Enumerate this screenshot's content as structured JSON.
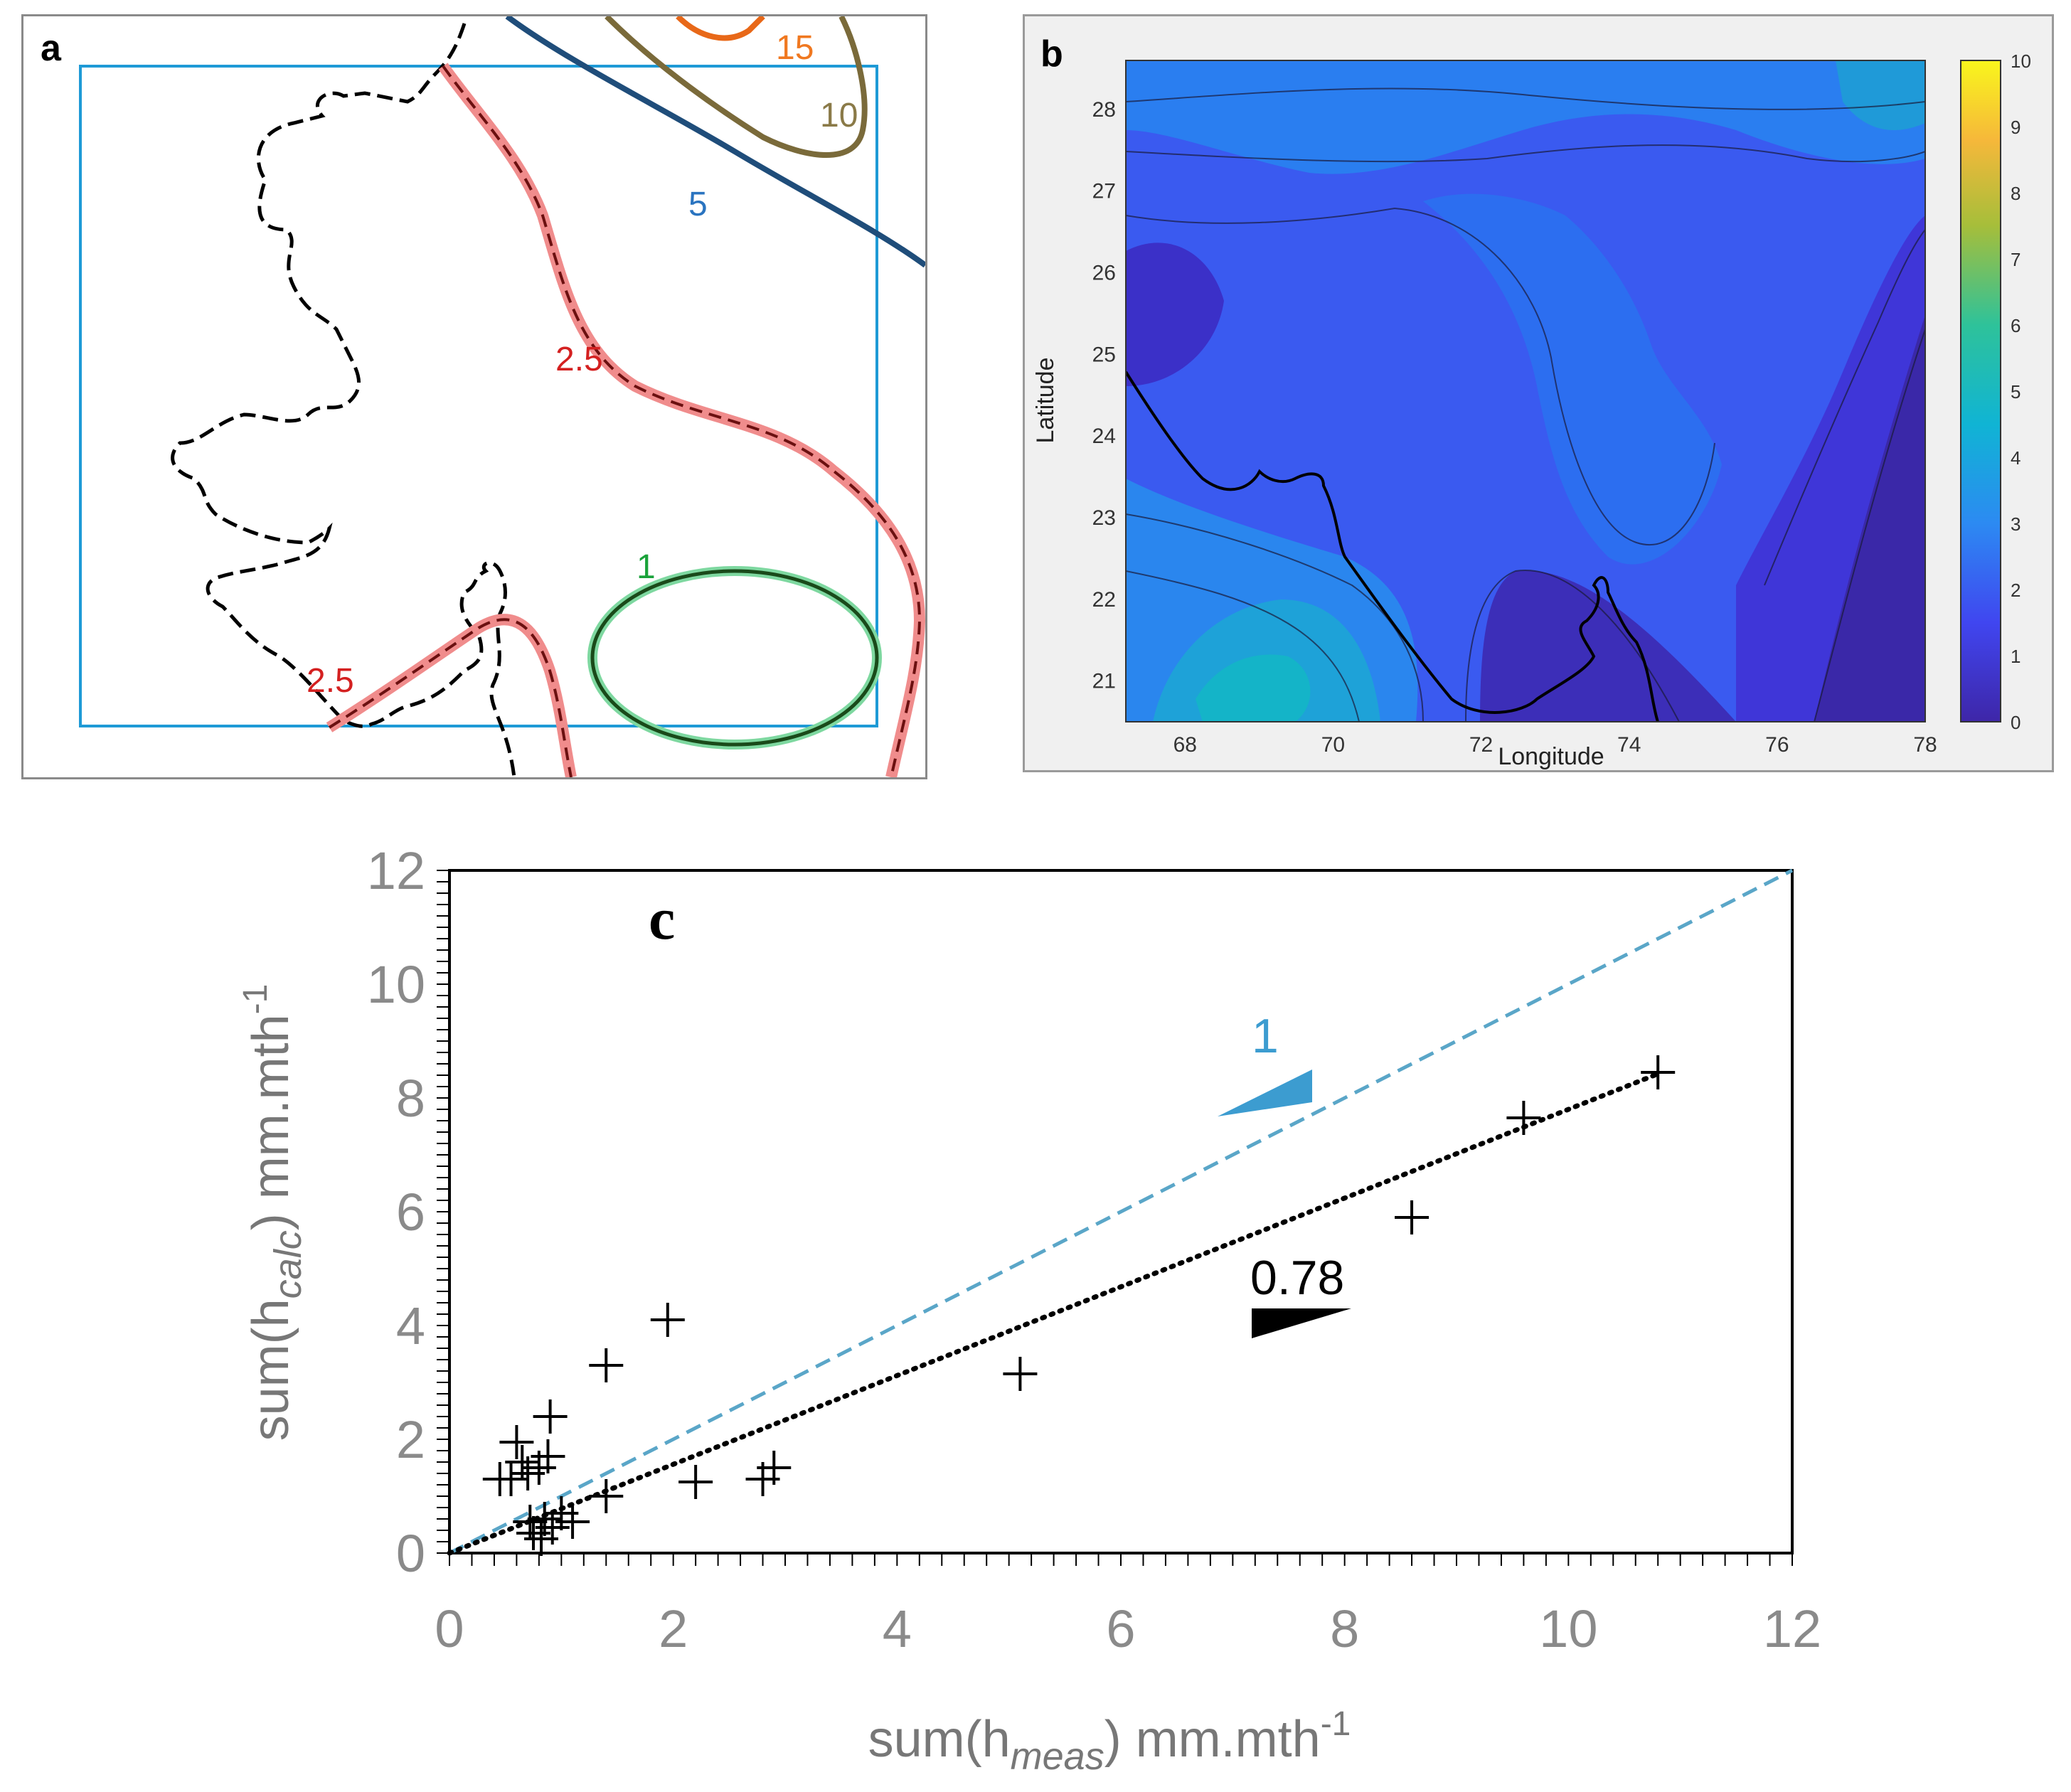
{
  "panel_a": {
    "letter": "a",
    "contour_labels": [
      {
        "text": "15",
        "color": "#f07820"
      },
      {
        "text": "10",
        "color": "#8a7a48"
      },
      {
        "text": "5",
        "color": "#2a74c0"
      },
      {
        "text": "2.5",
        "color": "#d42020"
      },
      {
        "text": "1",
        "color": "#1aa23a"
      },
      {
        "text": "2.5",
        "color": "#d42020"
      }
    ]
  },
  "panel_b": {
    "letter": "b",
    "xlabel": "Longitude",
    "ylabel": "Latitude",
    "x_ticks": [
      "68",
      "70",
      "72",
      "74",
      "76",
      "78"
    ],
    "y_ticks": [
      "21",
      "22",
      "23",
      "24",
      "25",
      "26",
      "27",
      "28"
    ],
    "colorbar_ticks": [
      "0",
      "1",
      "2",
      "3",
      "4",
      "5",
      "6",
      "7",
      "8",
      "9",
      "10"
    ]
  },
  "chart_data": [
    {
      "type": "scatter",
      "title": "c",
      "xlabel": "sum(h",
      "xlabel_sub": "meas",
      "xlabel_tail": ") mm.mth",
      "xlabel_sup": "-1",
      "ylabel": "sum(h",
      "ylabel_sub": "calc",
      "ylabel_tail": ") mm.mth",
      "ylabel_sup": "-1",
      "xlim": [
        0,
        12
      ],
      "ylim": [
        0,
        12
      ],
      "x_ticks": [
        "0",
        "2",
        "4",
        "6",
        "8",
        "10",
        "12"
      ],
      "y_ticks": [
        "0",
        "2",
        "4",
        "6",
        "8",
        "10",
        "12"
      ],
      "points": [
        {
          "x": 0.45,
          "y": 1.3
        },
        {
          "x": 0.55,
          "y": 1.3
        },
        {
          "x": 0.6,
          "y": 1.95
        },
        {
          "x": 0.65,
          "y": 1.6
        },
        {
          "x": 0.7,
          "y": 1.4
        },
        {
          "x": 0.72,
          "y": 0.55
        },
        {
          "x": 0.75,
          "y": 0.35
        },
        {
          "x": 0.8,
          "y": 1.5
        },
        {
          "x": 0.82,
          "y": 0.25
        },
        {
          "x": 0.85,
          "y": 0.6
        },
        {
          "x": 0.88,
          "y": 1.7
        },
        {
          "x": 0.9,
          "y": 2.4
        },
        {
          "x": 0.92,
          "y": 0.45
        },
        {
          "x": 1.0,
          "y": 0.7
        },
        {
          "x": 1.1,
          "y": 0.55
        },
        {
          "x": 1.4,
          "y": 1.0
        },
        {
          "x": 1.4,
          "y": 3.3
        },
        {
          "x": 1.95,
          "y": 4.1
        },
        {
          "x": 2.2,
          "y": 1.25
        },
        {
          "x": 2.8,
          "y": 1.3
        },
        {
          "x": 2.9,
          "y": 1.5
        },
        {
          "x": 5.1,
          "y": 3.15
        },
        {
          "x": 8.6,
          "y": 5.9
        },
        {
          "x": 9.6,
          "y": 7.65
        },
        {
          "x": 10.8,
          "y": 8.45
        }
      ],
      "lines": [
        {
          "name": "1:1 line",
          "slope": 1.0,
          "style": "dashed",
          "color": "#5aa6c8",
          "label": "1"
        },
        {
          "name": "fit",
          "slope": 0.78,
          "style": "dotted",
          "color": "#000000",
          "label": "0.78"
        }
      ]
    }
  ]
}
